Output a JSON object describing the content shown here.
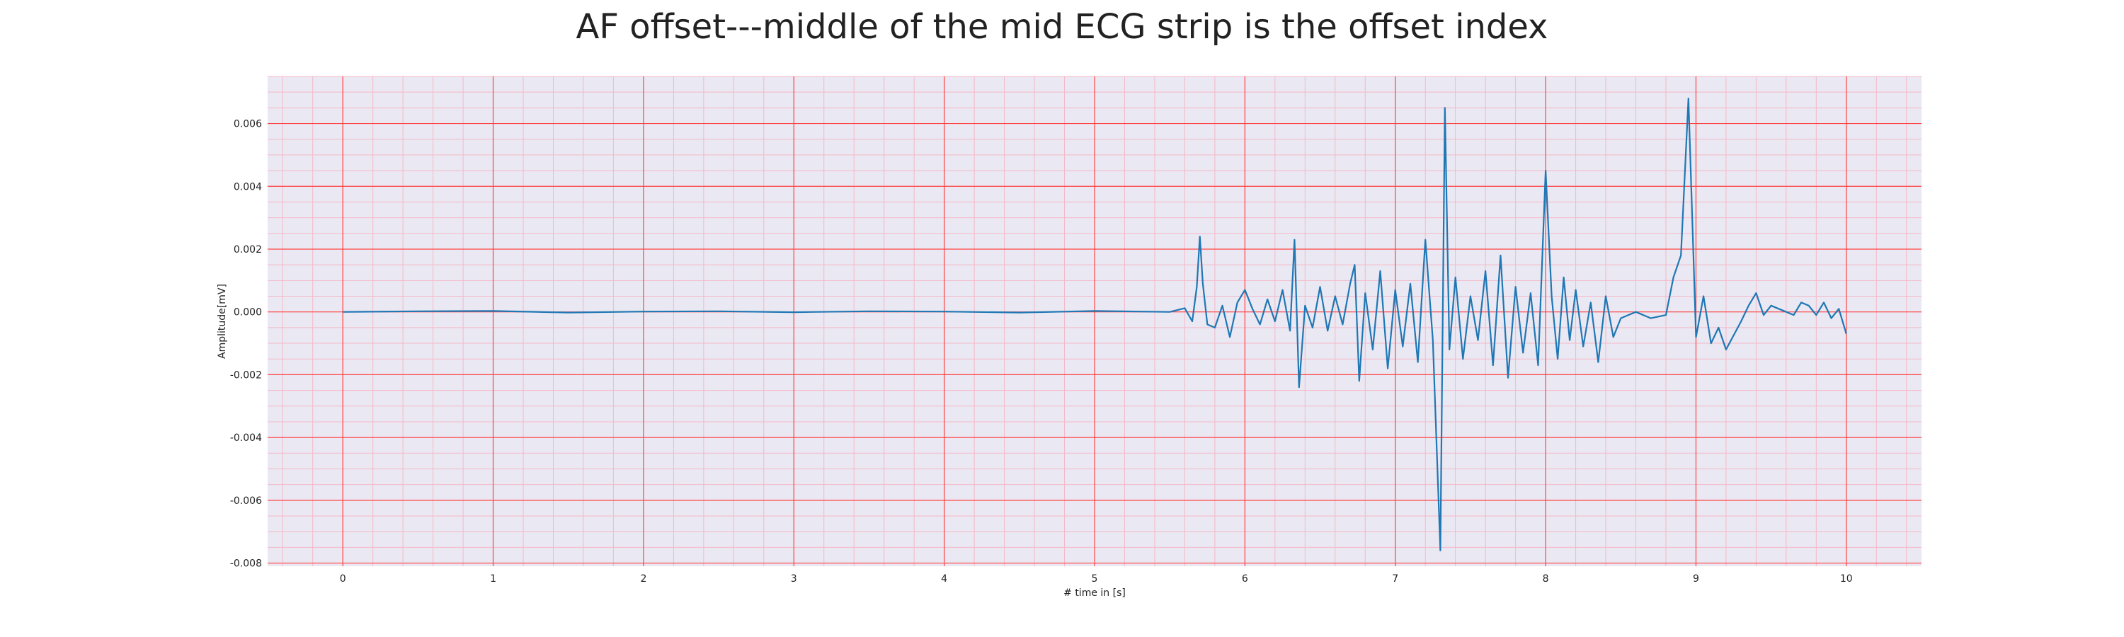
{
  "chart_data": {
    "type": "line",
    "title": "AF offset---middle of the mid ECG strip is the offset index",
    "xlabel": "# time in [s]",
    "ylabel": "Amplitude[mV]",
    "xlim": [
      -0.5,
      10.5
    ],
    "ylim": [
      -0.0081,
      0.0075
    ],
    "xticks": [
      0,
      1,
      2,
      3,
      4,
      5,
      6,
      7,
      8,
      9,
      10
    ],
    "xtick_labels": [
      "0",
      "1",
      "2",
      "3",
      "4",
      "5",
      "6",
      "7",
      "8",
      "9",
      "10"
    ],
    "yticks": [
      0.006,
      0.004,
      0.002,
      0.0,
      -0.002,
      -0.004,
      -0.006,
      -0.008
    ],
    "ytick_labels": [
      "0.006",
      "0.004",
      "0.002",
      "0.000",
      "-0.002",
      "-0.004",
      "-0.006",
      "-0.008"
    ],
    "grid": true,
    "colors": {
      "line": "#1f77b4",
      "major_grid": "#ff4444",
      "minor_grid": "#f5b8c8",
      "background": "#eae8f2"
    },
    "series": [
      {
        "x": [
          0.0,
          0.5,
          1.0,
          1.5,
          2.0,
          2.5,
          3.0,
          3.5,
          4.0,
          4.5,
          5.0,
          5.5,
          5.6,
          5.65,
          5.68,
          5.7,
          5.72,
          5.75,
          5.8,
          5.85,
          5.9,
          5.95,
          6.0,
          6.05,
          6.1,
          6.15,
          6.2,
          6.25,
          6.3,
          6.33,
          6.36,
          6.4,
          6.45,
          6.5,
          6.55,
          6.6,
          6.65,
          6.7,
          6.73,
          6.76,
          6.8,
          6.85,
          6.9,
          6.95,
          7.0,
          7.05,
          7.1,
          7.15,
          7.2,
          7.25,
          7.3,
          7.33,
          7.36,
          7.4,
          7.45,
          7.5,
          7.55,
          7.6,
          7.65,
          7.7,
          7.75,
          7.8,
          7.85,
          7.9,
          7.95,
          8.0,
          8.04,
          8.08,
          8.12,
          8.16,
          8.2,
          8.25,
          8.3,
          8.35,
          8.4,
          8.45,
          8.5,
          8.55,
          8.6,
          8.7,
          8.8,
          8.85,
          8.9,
          8.95,
          9.0,
          9.05,
          9.1,
          9.15,
          9.2,
          9.3,
          9.35,
          9.4,
          9.45,
          9.5,
          9.55,
          9.6,
          9.65,
          9.7,
          9.75,
          9.8,
          9.85,
          9.9,
          9.95,
          10.0
        ],
        "y": [
          0.0,
          2e-05,
          3e-05,
          -2e-05,
          1e-05,
          2e-05,
          -1e-05,
          2e-05,
          1e-05,
          -2e-05,
          3e-05,
          0.0,
          0.00012,
          -0.0003,
          0.0008,
          0.0024,
          0.0009,
          -0.0004,
          -0.0005,
          0.0002,
          -0.0008,
          0.0003,
          0.0007,
          0.0001,
          -0.0004,
          0.0004,
          -0.0003,
          0.0007,
          -0.0006,
          0.0023,
          -0.0024,
          0.0002,
          -0.0005,
          0.0008,
          -0.0006,
          0.0005,
          -0.0004,
          0.0009,
          0.0015,
          -0.0022,
          0.0006,
          -0.0012,
          0.0013,
          -0.0018,
          0.0007,
          -0.0011,
          0.0009,
          -0.0016,
          0.0023,
          -0.0009,
          -0.0076,
          0.0065,
          -0.0012,
          0.0011,
          -0.0015,
          0.0005,
          -0.0009,
          0.0013,
          -0.0017,
          0.0018,
          -0.0021,
          0.0008,
          -0.0013,
          0.0006,
          -0.0017,
          0.0045,
          0.0005,
          -0.0015,
          0.0011,
          -0.0009,
          0.0007,
          -0.0011,
          0.0003,
          -0.0016,
          0.0005,
          -0.0008,
          -0.0002,
          -0.0001,
          0.0,
          -0.0002,
          -0.0001,
          0.0011,
          0.0018,
          0.0068,
          -0.0008,
          0.0005,
          -0.001,
          -0.0005,
          -0.0012,
          -0.0003,
          0.0002,
          0.0006,
          -0.0001,
          0.0002,
          0.0001,
          0.0,
          -0.0001,
          0.0003,
          0.0002,
          -0.0001,
          0.0003,
          -0.0002,
          0.0001,
          -0.0007
        ]
      }
    ]
  }
}
